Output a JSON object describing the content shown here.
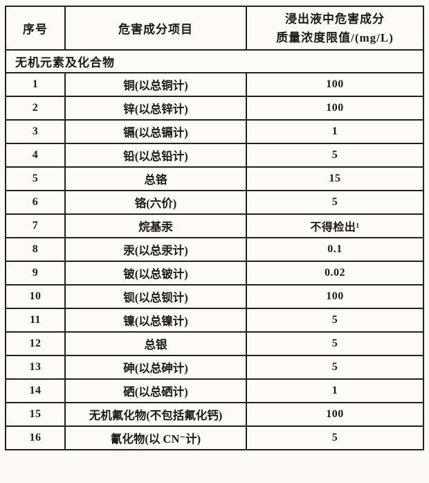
{
  "page": {
    "background": "#fbfaf6",
    "ink": "#1b1a17"
  },
  "table": {
    "header": {
      "col1": "序号",
      "col2": "危害成分项目",
      "col3_line1": "浸出液中危害成分",
      "col3_line2": "质量浓度限值/(mg/L)"
    },
    "section_label": "无机元素及化合物",
    "rows": [
      {
        "no": "1",
        "item": "铜(以总铜计)",
        "limit": "100"
      },
      {
        "no": "2",
        "item": "锌(以总锌计)",
        "limit": "100"
      },
      {
        "no": "3",
        "item": "镉(以总镉计)",
        "limit": "1"
      },
      {
        "no": "4",
        "item": "铅(以总铅计)",
        "limit": "5"
      },
      {
        "no": "5",
        "item": "总铬",
        "limit": "15"
      },
      {
        "no": "6",
        "item": "铬(六价)",
        "limit": "5"
      },
      {
        "no": "7",
        "item": "烷基汞",
        "limit": "不得检出¹"
      },
      {
        "no": "8",
        "item": "汞(以总汞计)",
        "limit": "0.1"
      },
      {
        "no": "9",
        "item": "铍(以总铍计)",
        "limit": "0.02"
      },
      {
        "no": "10",
        "item": "钡(以总钡计)",
        "limit": "100"
      },
      {
        "no": "11",
        "item": "镍(以总镍计)",
        "limit": "5"
      },
      {
        "no": "12",
        "item": "总银",
        "limit": "5"
      },
      {
        "no": "13",
        "item": "砷(以总砷计)",
        "limit": "5"
      },
      {
        "no": "14",
        "item": "硒(以总硒计)",
        "limit": "1"
      },
      {
        "no": "15",
        "item": "无机氟化物(不包括氟化钙)",
        "limit": "100"
      },
      {
        "no": "16",
        "item": "氰化物(以 CN⁻计)",
        "limit": "5"
      }
    ]
  }
}
